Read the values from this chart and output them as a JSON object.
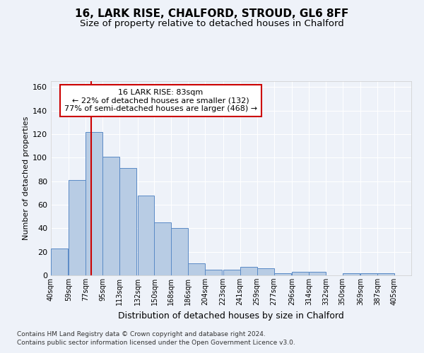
{
  "title1": "16, LARK RISE, CHALFORD, STROUD, GL6 8FF",
  "title2": "Size of property relative to detached houses in Chalford",
  "xlabel": "Distribution of detached houses by size in Chalford",
  "ylabel": "Number of detached properties",
  "footnote1": "Contains HM Land Registry data © Crown copyright and database right 2024.",
  "footnote2": "Contains public sector information licensed under the Open Government Licence v3.0.",
  "annotation_line1": "16 LARK RISE: 83sqm",
  "annotation_line2": "← 22% of detached houses are smaller (132)",
  "annotation_line3": "77% of semi-detached houses are larger (468) →",
  "bar_color": "#b8cce4",
  "bar_edge_color": "#5a8ac6",
  "red_line_x": 83,
  "categories": [
    "40sqm",
    "59sqm",
    "77sqm",
    "95sqm",
    "113sqm",
    "132sqm",
    "150sqm",
    "168sqm",
    "186sqm",
    "204sqm",
    "223sqm",
    "241sqm",
    "259sqm",
    "277sqm",
    "296sqm",
    "314sqm",
    "332sqm",
    "350sqm",
    "369sqm",
    "387sqm",
    "405sqm"
  ],
  "bin_edges": [
    40,
    59,
    77,
    95,
    113,
    132,
    150,
    168,
    186,
    204,
    223,
    241,
    259,
    277,
    296,
    314,
    332,
    350,
    369,
    387,
    405
  ],
  "bin_width": 18,
  "values": [
    23,
    81,
    122,
    101,
    91,
    68,
    45,
    40,
    10,
    5,
    5,
    7,
    6,
    2,
    3,
    3,
    0,
    2,
    2,
    2,
    0
  ],
  "ylim": [
    0,
    165
  ],
  "yticks": [
    0,
    20,
    40,
    60,
    80,
    100,
    120,
    140,
    160
  ],
  "background_color": "#eef2f9",
  "grid_color": "#ffffff",
  "annotation_box_facecolor": "#ffffff",
  "annotation_box_edgecolor": "#cc0000",
  "red_line_color": "#cc0000",
  "title1_fontsize": 11,
  "title2_fontsize": 9.5,
  "xlabel_fontsize": 9,
  "ylabel_fontsize": 8,
  "xtick_fontsize": 7,
  "ytick_fontsize": 8,
  "footnote_fontsize": 6.5
}
